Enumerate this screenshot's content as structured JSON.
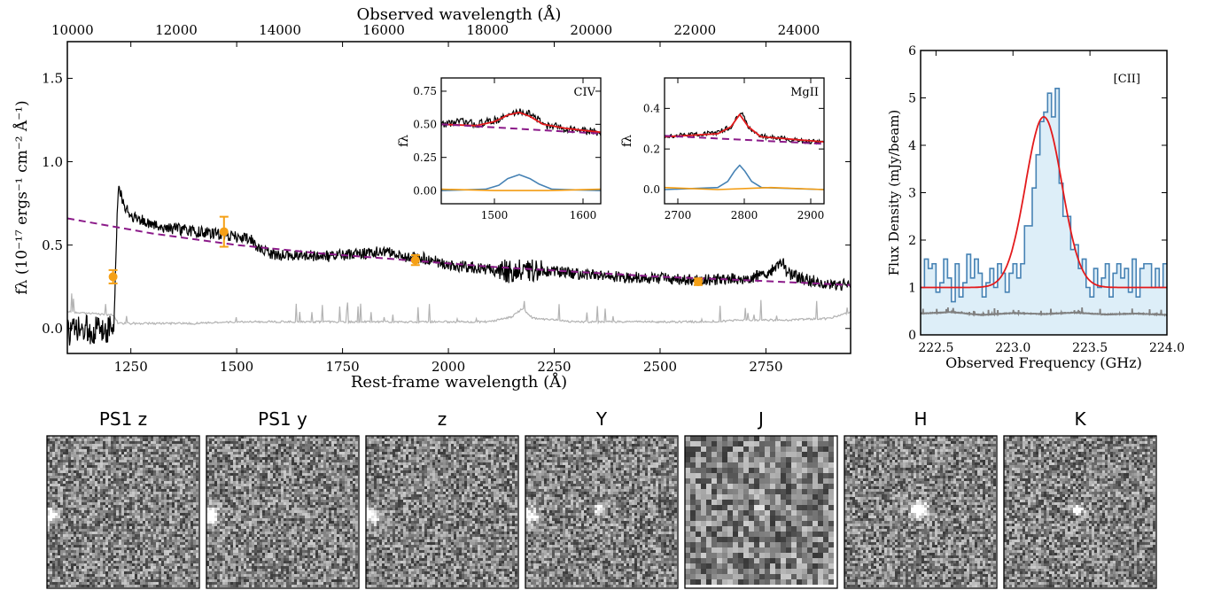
{
  "chart_data": [
    {
      "id": "spectrum",
      "type": "line",
      "xlabel": "Rest-frame wavelength (Å)",
      "x2label": "Observed wavelength (Å)",
      "ylabel": "fλ (10⁻¹⁷ ergs⁻¹ cm⁻² Å⁻¹)",
      "xlim": [
        1100,
        2950
      ],
      "ylim": [
        -0.15,
        1.72
      ],
      "x2lim": [
        9900,
        25000
      ],
      "x_ticks": [
        1250,
        1500,
        1750,
        2000,
        2250,
        2500,
        2750
      ],
      "x_tick_labels": [
        "1250",
        "1500",
        "1750",
        "2000",
        "2250",
        "2500",
        "2750"
      ],
      "x2_ticks": [
        10000,
        12000,
        14000,
        16000,
        18000,
        20000,
        22000,
        24000
      ],
      "x2_tick_labels": [
        "10000",
        "12000",
        "14000",
        "16000",
        "18000",
        "20000",
        "22000",
        "24000"
      ],
      "y_ticks": [
        0.0,
        0.5,
        1.0,
        1.5
      ],
      "y_tick_labels": [
        "0.0",
        "0.5",
        "1.0",
        "1.5"
      ],
      "series": [
        {
          "key": "flux",
          "color": "#000000",
          "style": "solid",
          "x": [
            1100,
            1150,
            1200,
            1210,
            1215,
            1220,
            1225,
            1230,
            1240,
            1250,
            1275,
            1300,
            1350,
            1400,
            1450,
            1500,
            1525,
            1540,
            1550,
            1575,
            1600,
            1650,
            1700,
            1750,
            1800,
            1850,
            1900,
            1950,
            2000,
            2050,
            2100,
            2150,
            2200,
            2250,
            2300,
            2400,
            2500,
            2600,
            2700,
            2750,
            2790,
            2800,
            2850,
            2900,
            2950
          ],
          "y": [
            -0.02,
            -0.01,
            0.0,
            0.01,
            0.45,
            0.85,
            0.82,
            0.75,
            0.72,
            0.68,
            0.65,
            0.62,
            0.6,
            0.58,
            0.57,
            0.55,
            0.54,
            0.52,
            0.48,
            0.45,
            0.44,
            0.44,
            0.43,
            0.44,
            0.45,
            0.46,
            0.43,
            0.42,
            0.38,
            0.37,
            0.35,
            0.34,
            0.35,
            0.34,
            0.33,
            0.31,
            0.3,
            0.29,
            0.3,
            0.32,
            0.4,
            0.33,
            0.29,
            0.27,
            0.26
          ]
        },
        {
          "key": "noise",
          "color": "#b3b3b3",
          "style": "solid",
          "x": [
            1100,
            1210,
            1220,
            1300,
            1400,
            1500,
            1600,
            1700,
            1800,
            1900,
            2000,
            2100,
            2150,
            2175,
            2200,
            2300,
            2400,
            2500,
            2600,
            2700,
            2800,
            2900,
            2950
          ],
          "y": [
            0.1,
            0.08,
            0.03,
            0.03,
            0.03,
            0.04,
            0.04,
            0.04,
            0.04,
            0.04,
            0.04,
            0.04,
            0.07,
            0.12,
            0.06,
            0.04,
            0.04,
            0.04,
            0.04,
            0.05,
            0.05,
            0.06,
            0.1
          ]
        },
        {
          "key": "powerlaw",
          "color": "#8b1a89",
          "style": "dashed",
          "x": [
            1100,
            1300,
            1500,
            1700,
            1900,
            2100,
            2300,
            2500,
            2700,
            2950
          ],
          "y": [
            0.66,
            0.57,
            0.5,
            0.45,
            0.41,
            0.37,
            0.34,
            0.31,
            0.29,
            0.26
          ]
        }
      ],
      "photometry": {
        "color": "#f5a016",
        "x": [
          1208,
          1470,
          1922,
          2590
        ],
        "y": [
          0.31,
          0.58,
          0.41,
          0.28
        ],
        "err": [
          0.04,
          0.09,
          0.03,
          0.02
        ]
      }
    },
    {
      "id": "civ",
      "type": "line",
      "title": "CIV",
      "ylabel": "fλ",
      "xlim": [
        1440,
        1620
      ],
      "ylim": [
        -0.1,
        0.85
      ],
      "x_ticks": [
        1500,
        1600
      ],
      "x_tick_labels": [
        "1500",
        "1600"
      ],
      "y_ticks": [
        0.0,
        0.25,
        0.5,
        0.75
      ],
      "y_tick_labels": [
        "0.00",
        "0.25",
        "0.50",
        "0.75"
      ],
      "series": [
        {
          "key": "data",
          "color": "#000000",
          "x": [
            1440,
            1460,
            1480,
            1500,
            1510,
            1520,
            1530,
            1540,
            1550,
            1560,
            1580,
            1600,
            1620
          ],
          "y": [
            0.5,
            0.52,
            0.5,
            0.53,
            0.55,
            0.58,
            0.6,
            0.58,
            0.53,
            0.49,
            0.47,
            0.45,
            0.44
          ]
        },
        {
          "key": "model",
          "color": "#e31a1c",
          "x": [
            1440,
            1480,
            1500,
            1515,
            1528,
            1540,
            1555,
            1580,
            1620
          ],
          "y": [
            0.5,
            0.49,
            0.52,
            0.57,
            0.59,
            0.56,
            0.5,
            0.47,
            0.44
          ]
        },
        {
          "key": "continuum",
          "color": "#8b1a89",
          "style": "dashed",
          "x": [
            1440,
            1620
          ],
          "y": [
            0.5,
            0.43
          ]
        },
        {
          "key": "broad",
          "color": "#4682b4",
          "x": [
            1440,
            1490,
            1505,
            1515,
            1528,
            1540,
            1550,
            1565,
            1620
          ],
          "y": [
            0.0,
            0.01,
            0.04,
            0.09,
            0.12,
            0.09,
            0.05,
            0.01,
            0.0
          ]
        },
        {
          "key": "narrow",
          "color": "#f39c12",
          "x": [
            1440,
            1500,
            1560,
            1620
          ],
          "y": [
            0.01,
            0.0,
            0.0,
            0.01
          ]
        }
      ]
    },
    {
      "id": "mgii",
      "type": "line",
      "title": "MgII",
      "ylabel": "fλ",
      "xlim": [
        2680,
        2920
      ],
      "ylim": [
        -0.07,
        0.55
      ],
      "x_ticks": [
        2700,
        2800,
        2900
      ],
      "x_tick_labels": [
        "2700",
        "2800",
        "2900"
      ],
      "y_ticks": [
        0.0,
        0.2,
        0.4
      ],
      "y_tick_labels": [
        "0.0",
        "0.2",
        "0.4"
      ],
      "series": [
        {
          "key": "data",
          "color": "#000000",
          "x": [
            2680,
            2720,
            2760,
            2780,
            2790,
            2795,
            2800,
            2810,
            2830,
            2860,
            2890,
            2920
          ],
          "y": [
            0.26,
            0.27,
            0.28,
            0.31,
            0.36,
            0.39,
            0.35,
            0.29,
            0.26,
            0.25,
            0.24,
            0.23
          ]
        },
        {
          "key": "model",
          "color": "#e31a1c",
          "x": [
            2680,
            2760,
            2780,
            2793,
            2806,
            2825,
            2920
          ],
          "y": [
            0.26,
            0.275,
            0.31,
            0.37,
            0.31,
            0.26,
            0.235
          ]
        },
        {
          "key": "continuum",
          "color": "#8b1a89",
          "style": "dashed",
          "x": [
            2680,
            2920
          ],
          "y": [
            0.265,
            0.225
          ]
        },
        {
          "key": "broad",
          "color": "#4682b4",
          "x": [
            2680,
            2760,
            2775,
            2785,
            2793,
            2801,
            2811,
            2826,
            2920
          ],
          "y": [
            0.0,
            0.01,
            0.04,
            0.09,
            0.12,
            0.09,
            0.04,
            0.01,
            0.0
          ]
        },
        {
          "key": "narrow",
          "color": "#f39c12",
          "x": [
            2680,
            2760,
            2840,
            2920
          ],
          "y": [
            0.01,
            0.0,
            0.01,
            0.0
          ]
        }
      ]
    },
    {
      "id": "cii",
      "type": "line",
      "title": "[CII]",
      "xlabel": "Observed Frequency (GHz)",
      "ylabel": "Flux Density (mJy/beam)",
      "xlim": [
        222.4,
        224.0
      ],
      "ylim": [
        0,
        6
      ],
      "x_ticks": [
        222.5,
        223.0,
        223.5,
        224.0
      ],
      "x_tick_labels": [
        "222.5",
        "223.0",
        "223.5",
        "224.0"
      ],
      "y_ticks": [
        0,
        1,
        2,
        3,
        4,
        5,
        6
      ],
      "y_tick_labels": [
        "0",
        "1",
        "2",
        "3",
        "4",
        "5",
        "6"
      ],
      "steps": {
        "color": "#4682b4",
        "fill": "#ddeef8",
        "x0": 222.4,
        "dx": 0.025,
        "y": [
          1.0,
          1.6,
          1.4,
          1.5,
          0.9,
          1.1,
          1.6,
          1.2,
          0.7,
          1.5,
          0.8,
          1.1,
          1.7,
          1.2,
          1.6,
          1.3,
          0.8,
          1.1,
          1.4,
          1.0,
          1.5,
          1.3,
          0.9,
          1.3,
          1.5,
          1.2,
          1.5,
          2.3,
          2.3,
          3.1,
          3.8,
          4.5,
          4.7,
          5.1,
          4.6,
          5.2,
          3.2,
          2.5,
          2.5,
          1.8,
          1.9,
          1.4,
          1.6,
          1.0,
          0.8,
          1.4,
          1.0,
          1.2,
          1.5,
          0.8,
          1.3,
          1.5,
          1.2,
          1.4,
          0.9,
          1.6,
          0.8,
          1.4,
          1.5,
          1.5,
          1.0,
          1.4,
          1.0,
          1.5
        ]
      },
      "series": [
        {
          "key": "gaussian",
          "color": "#e31a1c",
          "baseline": 1.0,
          "amp": 3.6,
          "center": 223.2,
          "sigma": 0.118
        },
        {
          "key": "noise",
          "color": "#808080",
          "x": [
            222.4,
            222.6,
            222.8,
            223.0,
            223.2,
            223.4,
            223.6,
            223.8,
            224.0
          ],
          "y": [
            0.45,
            0.48,
            0.42,
            0.46,
            0.44,
            0.47,
            0.43,
            0.45,
            0.42
          ]
        }
      ]
    },
    {
      "id": "cutouts",
      "type": "heatmap",
      "panels": [
        {
          "label": "PS1 z",
          "source": null,
          "grain": 3
        },
        {
          "label": "PS1 y",
          "source": null,
          "grain": 3
        },
        {
          "label": "z",
          "source": null,
          "grain": 3
        },
        {
          "label": "Y",
          "source": "faint",
          "grain": 3
        },
        {
          "label": "J",
          "source": "faint",
          "grain": 6
        },
        {
          "label": "H",
          "source": "bright",
          "grain": 3
        },
        {
          "label": "K",
          "source": "faint",
          "grain": 3
        }
      ]
    }
  ]
}
